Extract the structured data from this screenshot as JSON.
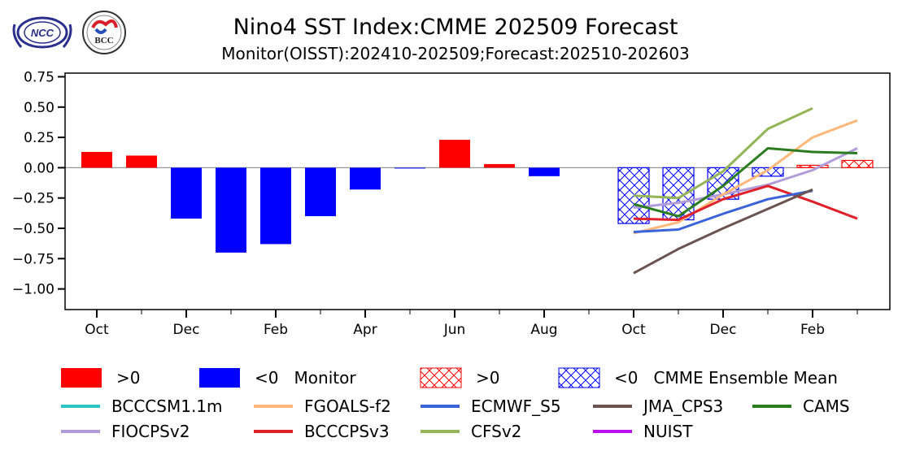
{
  "chart_data": {
    "type": "bar",
    "title": "Nino4 SST Index:CMME 202509 Forecast",
    "subtitle": "Monitor(OISST):202410-202509;Forecast:202510-202603",
    "logos": [
      "NCC",
      "BCC"
    ],
    "xlabel": "",
    "ylabel": "",
    "ylim": [
      -1.17,
      0.78
    ],
    "yticks": [
      0.75,
      0.5,
      0.25,
      0.0,
      -0.25,
      -0.5,
      -0.75,
      -1.0
    ],
    "ytick_labels": [
      "0.75",
      "0.50",
      "0.25",
      "0.00",
      "−0.25",
      "−0.50",
      "−0.75",
      "−1.00"
    ],
    "months": [
      "2024-10",
      "2024-11",
      "2024-12",
      "2025-01",
      "2025-02",
      "2025-03",
      "2025-04",
      "2025-05",
      "2025-06",
      "2025-07",
      "2025-08",
      "2025-09",
      "2025-10",
      "2025-11",
      "2025-12",
      "2026-01",
      "2026-02",
      "2026-03"
    ],
    "xtick_labels": [
      {
        "index": 0,
        "label": "Oct"
      },
      {
        "index": 2,
        "label": "Dec"
      },
      {
        "index": 4,
        "label": "Feb"
      },
      {
        "index": 6,
        "label": "Apr"
      },
      {
        "index": 8,
        "label": "Jun"
      },
      {
        "index": 10,
        "label": "Aug"
      },
      {
        "index": 12,
        "label": "Oct"
      },
      {
        "index": 14,
        "label": "Dec"
      },
      {
        "index": 16,
        "label": "Feb"
      }
    ],
    "monitor": {
      "name": "Monitor",
      "start_index": 0,
      "values": [
        0.13,
        0.1,
        -0.42,
        -0.7,
        -0.63,
        -0.4,
        -0.18,
        -0.005,
        0.23,
        0.03,
        -0.07,
        0.0
      ],
      "pos_color": "#ff0000",
      "neg_color": "#0000ff"
    },
    "ensemble": {
      "name": "CMME Ensemble Mean",
      "start_index": 12,
      "values": [
        -0.46,
        -0.43,
        -0.26,
        -0.07,
        0.02,
        0.06
      ],
      "pos_color": "#ff0000",
      "neg_color": "#0000ff",
      "hatch": "xx"
    },
    "series": [
      {
        "name": "BCCCSM1.1m",
        "color": "#2ec4c4",
        "start_index": 12,
        "values": []
      },
      {
        "name": "FIOCPSv2",
        "color": "#b19cd9",
        "start_index": 12,
        "values": [
          -0.33,
          -0.29,
          -0.22,
          -0.14,
          -0.02,
          0.16
        ]
      },
      {
        "name": "FGOALS-f2",
        "color": "#ffb87a",
        "start_index": 12,
        "values": [
          -0.54,
          -0.45,
          -0.22,
          -0.02,
          0.25,
          0.39
        ]
      },
      {
        "name": "BCCCPSv3",
        "color": "#e0202a",
        "start_index": 12,
        "values": [
          -0.42,
          -0.43,
          -0.26,
          -0.15,
          -0.28,
          -0.42
        ]
      },
      {
        "name": "ECMWF_S5",
        "color": "#3b63d9",
        "start_index": 12,
        "values": [
          -0.53,
          -0.51,
          -0.38,
          -0.26,
          -0.19
        ]
      },
      {
        "name": "CFSv2",
        "color": "#93b558",
        "start_index": 12,
        "values": [
          -0.23,
          -0.25,
          -0.03,
          0.32,
          0.49
        ]
      },
      {
        "name": "JMA_CPS3",
        "color": "#6b5450",
        "start_index": 12,
        "values": [
          -0.87,
          -0.67,
          -0.5,
          -0.34,
          -0.18
        ]
      },
      {
        "name": "NUIST",
        "color": "#bb10ee",
        "start_index": 12,
        "values": []
      },
      {
        "name": "CAMS",
        "color": "#2a7d1e",
        "start_index": 12,
        "values": [
          -0.3,
          -0.4,
          -0.15,
          0.16,
          0.13,
          0.12
        ]
      }
    ],
    "legend": {
      "placement": "bottom",
      "row1": [
        {
          "kind": "solid",
          "color": "#ff0000",
          "label": ">0"
        },
        {
          "kind": "solid",
          "color": "#0000ff",
          "label": "<0   Monitor"
        },
        {
          "kind": "hatch",
          "color": "#ff0000",
          "label": ">0"
        },
        {
          "kind": "hatch",
          "color": "#0000ff",
          "label": "<0   CMME Ensemble Mean"
        }
      ],
      "line_order": [
        "BCCCSM1.1m",
        "FGOALS-f2",
        "ECMWF_S5",
        "JMA_CPS3",
        "CAMS",
        "FIOCPSv2",
        "BCCCPSv3",
        "CFSv2",
        "NUIST"
      ]
    },
    "grid": false,
    "zero_line_color": "#999999"
  }
}
